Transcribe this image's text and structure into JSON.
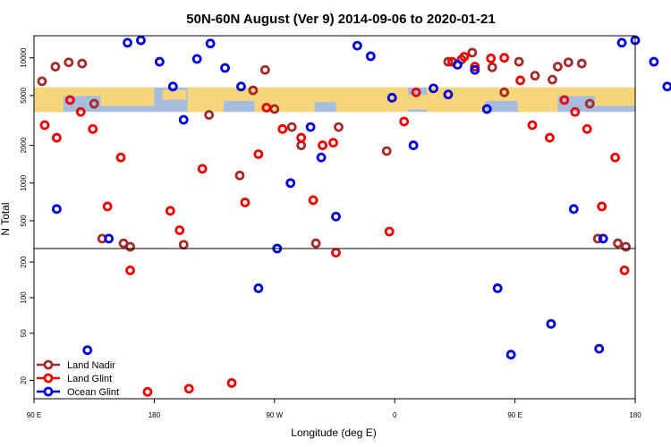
{
  "chart_data": {
    "type": "scatter",
    "title": "50N-60N August (Ver 9)   2014-09-06 to 2020-01-21",
    "xlabel": "Longitude (deg E)",
    "ylabel": "N Total",
    "x_scale": "linear",
    "y_scale": "log",
    "xlim": [
      90,
      540
    ],
    "x_ticks": [
      {
        "value": 90,
        "label": "90 E"
      },
      {
        "value": 180,
        "label": "180"
      },
      {
        "value": 270,
        "label": "90 W"
      },
      {
        "value": 360,
        "label": "0"
      },
      {
        "value": 450,
        "label": "90 E"
      },
      {
        "value": 540,
        "label": "180"
      }
    ],
    "upper_panel": {
      "ylim": [
        300,
        15000
      ],
      "y_ticks": [
        500,
        1000,
        2000,
        5000,
        10000
      ],
      "map_band": {
        "ylim": [
          3700,
          5800
        ],
        "ocean_color": "#a6bde0",
        "land_color": "#f5d67a"
      }
    },
    "lower_panel": {
      "ylim": [
        14,
        260
      ],
      "y_ticks": [
        20,
        50,
        100,
        200
      ]
    },
    "legend_position": "bottom-left",
    "series": [
      {
        "name": "Land Nadir",
        "color": "#a52a2a",
        "points": [
          [
            96,
            6500
          ],
          [
            106,
            8500
          ],
          [
            116,
            9200
          ],
          [
            126,
            9000
          ],
          [
            135,
            4300
          ],
          [
            141,
            360
          ],
          [
            157,
            330
          ],
          [
            162,
            310
          ],
          [
            202,
            280
          ],
          [
            221,
            3500
          ],
          [
            244,
            1150
          ],
          [
            254,
            5500
          ],
          [
            263,
            8000
          ],
          [
            270,
            3900
          ],
          [
            283,
            2800
          ],
          [
            290,
            2000
          ],
          [
            301,
            330
          ],
          [
            318,
            2800
          ],
          [
            354,
            1800
          ],
          [
            400,
            9300
          ],
          [
            410,
            9700
          ],
          [
            418,
            11000
          ],
          [
            433,
            8400
          ],
          [
            442,
            5300
          ],
          [
            453,
            9300
          ],
          [
            465,
            7200
          ],
          [
            478,
            6700
          ],
          [
            482,
            8500
          ],
          [
            490,
            9200
          ],
          [
            500,
            9000
          ],
          [
            506,
            4300
          ],
          [
            512,
            360
          ],
          [
            527,
            330
          ],
          [
            533,
            310
          ]
        ]
      },
      {
        "name": "Land Glint",
        "color": "#ee0000",
        "points": [
          [
            98,
            2900
          ],
          [
            107,
            2300
          ],
          [
            117,
            4600
          ],
          [
            125,
            3700
          ],
          [
            134,
            2700
          ],
          [
            145,
            650
          ],
          [
            155,
            1600
          ],
          [
            162,
            170
          ],
          [
            175,
            16
          ],
          [
            192,
            600
          ],
          [
            199,
            420
          ],
          [
            206,
            17
          ],
          [
            216,
            1300
          ],
          [
            238,
            19
          ],
          [
            248,
            700
          ],
          [
            258,
            1700
          ],
          [
            264,
            4000
          ],
          [
            276,
            2700
          ],
          [
            290,
            2300
          ],
          [
            299,
            730
          ],
          [
            306,
            2000
          ],
          [
            314,
            2100
          ],
          [
            316,
            240
          ],
          [
            356,
            410
          ],
          [
            367,
            3100
          ],
          [
            376,
            5300
          ],
          [
            403,
            9300
          ],
          [
            412,
            10200
          ],
          [
            420,
            8500
          ],
          [
            432,
            9900
          ],
          [
            442,
            10000
          ],
          [
            454,
            6600
          ],
          [
            463,
            2900
          ],
          [
            476,
            2300
          ],
          [
            487,
            4600
          ],
          [
            495,
            3700
          ],
          [
            504,
            2700
          ],
          [
            515,
            650
          ],
          [
            525,
            1600
          ],
          [
            532,
            170
          ]
        ]
      },
      {
        "name": "Ocean Glint",
        "color": "#0000dd",
        "points": [
          [
            107,
            620
          ],
          [
            130,
            36
          ],
          [
            146,
            360
          ],
          [
            160,
            13200
          ],
          [
            170,
            13800
          ],
          [
            184,
            9300
          ],
          [
            194,
            5900
          ],
          [
            202,
            3200
          ],
          [
            212,
            9800
          ],
          [
            222,
            13000
          ],
          [
            233,
            8300
          ],
          [
            245,
            5900
          ],
          [
            258,
            120
          ],
          [
            272,
            300
          ],
          [
            282,
            1000
          ],
          [
            297,
            2800
          ],
          [
            305,
            1600
          ],
          [
            316,
            540
          ],
          [
            332,
            12500
          ],
          [
            342,
            10300
          ],
          [
            358,
            4800
          ],
          [
            374,
            2000
          ],
          [
            389,
            5700
          ],
          [
            400,
            5100
          ],
          [
            407,
            8800
          ],
          [
            420,
            8000
          ],
          [
            429,
            3900
          ],
          [
            437,
            120
          ],
          [
            447,
            33
          ],
          [
            477,
            60
          ],
          [
            494,
            620
          ],
          [
            513,
            37
          ],
          [
            516,
            360
          ],
          [
            530,
            13200
          ],
          [
            540,
            13800
          ],
          [
            554,
            9300
          ],
          [
            564,
            5900
          ]
        ]
      }
    ]
  }
}
